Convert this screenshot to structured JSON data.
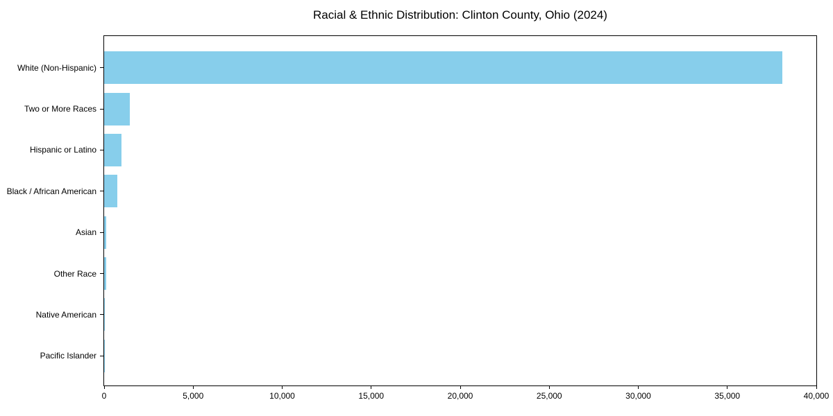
{
  "page": {
    "background_color": "#ffffff",
    "text_color": "#000000"
  },
  "chart_data": {
    "type": "bar",
    "orientation": "horizontal",
    "title": "Racial & Ethnic Distribution: Clinton County, Ohio (2024)",
    "categories": [
      "White (Non-Hispanic)",
      "Two or More Races",
      "Hispanic or Latino",
      "Black / African American",
      "Asian",
      "Other Race",
      "Native American",
      "Pacific Islander"
    ],
    "values": [
      38100,
      1450,
      980,
      750,
      130,
      100,
      30,
      10
    ],
    "xlabel": "",
    "ylabel": "",
    "xlim": [
      0,
      40000
    ],
    "x_ticks": [
      0,
      5000,
      10000,
      15000,
      20000,
      25000,
      30000,
      35000,
      40000
    ],
    "x_tick_labels": [
      "0",
      "5,000",
      "10,000",
      "15,000",
      "20,000",
      "25,000",
      "30,000",
      "35,000",
      "40,000"
    ],
    "bar_color": "#87CEEB",
    "frame_color": "#000000",
    "grid": false,
    "legend": null
  }
}
